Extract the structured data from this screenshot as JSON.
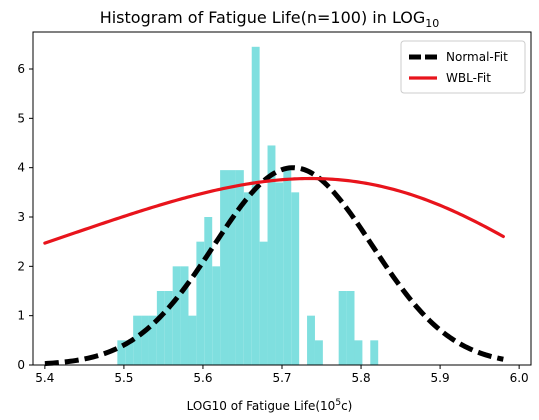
{
  "chart_data": {
    "type": "bar",
    "title_main": "Histogram of Fatigue Life(n=100) in LOG",
    "title_sub": "10",
    "xlabel_main": "LOG10 of Fatigue Life(10",
    "xlabel_sup": "5",
    "xlabel_tail": "c)",
    "xlim": [
      5.385,
      6.015
    ],
    "ylim": [
      0,
      6.75
    ],
    "x_ticks": [
      "5.4",
      "5.5",
      "5.6",
      "5.7",
      "5.8",
      "5.9",
      "6.0"
    ],
    "y_ticks": [
      "0",
      "1",
      "2",
      "3",
      "4",
      "5",
      "6"
    ],
    "bar_color": "#7fdfdf",
    "bins": [
      {
        "x": 5.4917,
        "h": 0.5
      },
      {
        "x": 5.5017,
        "h": 0.5
      },
      {
        "x": 5.5117,
        "h": 1.0
      },
      {
        "x": 5.5217,
        "h": 1.0
      },
      {
        "x": 5.5317,
        "h": 1.0
      },
      {
        "x": 5.5417,
        "h": 1.5
      },
      {
        "x": 5.5517,
        "h": 1.5
      },
      {
        "x": 5.5617,
        "h": 2.0
      },
      {
        "x": 5.5717,
        "h": 2.0
      },
      {
        "x": 5.5817,
        "h": 1.0
      },
      {
        "x": 5.5917,
        "h": 2.5
      },
      {
        "x": 5.6017,
        "h": 3.0
      },
      {
        "x": 5.6117,
        "h": 2.0
      },
      {
        "x": 5.6217,
        "h": 3.95
      },
      {
        "x": 5.6317,
        "h": 3.95
      },
      {
        "x": 5.6417,
        "h": 3.95
      },
      {
        "x": 5.6517,
        "h": 3.5
      },
      {
        "x": 5.6617,
        "h": 6.45
      },
      {
        "x": 5.6717,
        "h": 2.5
      },
      {
        "x": 5.6817,
        "h": 4.45
      },
      {
        "x": 5.6917,
        "h": 3.7
      },
      {
        "x": 5.7017,
        "h": 3.95
      },
      {
        "x": 5.7117,
        "h": 3.5
      },
      {
        "x": 5.7217,
        "h": 0.0
      },
      {
        "x": 5.7317,
        "h": 1.0
      },
      {
        "x": 5.7417,
        "h": 0.5
      },
      {
        "x": 5.7517,
        "h": 0.0
      },
      {
        "x": 5.7617,
        "h": 0.0
      },
      {
        "x": 5.7717,
        "h": 1.5
      },
      {
        "x": 5.7817,
        "h": 1.5
      },
      {
        "x": 5.7917,
        "h": 0.5
      },
      {
        "x": 5.8017,
        "h": 0.0
      },
      {
        "x": 5.8117,
        "h": 0.5
      }
    ],
    "series": [
      {
        "name": "Normal-Fit",
        "color": "#000000",
        "style": "dashed",
        "mean": 5.714,
        "sd": 0.1,
        "peak": 4.0
      },
      {
        "name": "WBL-Fit",
        "color": "#e8141c",
        "style": "solid",
        "shape": 18.6,
        "scale": 5.7535,
        "peak": 3.78
      }
    ],
    "curve_range": [
      5.4,
      5.98
    ],
    "legend_position": "top-right",
    "grid": false
  }
}
